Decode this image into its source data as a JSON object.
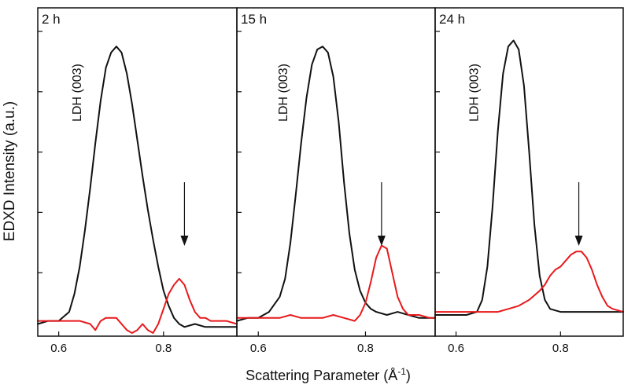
{
  "chart_data": {
    "type": "line",
    "ylabel": "EDXD Intensity (a.u.)",
    "xlabel": "Scattering Parameter (Å",
    "xlabel_superscript": "-1",
    "xlabel_suffix": ")",
    "grid": false,
    "colors": {
      "ldh": "#111111",
      "reflection": "#e8191b",
      "axis": "#111111",
      "arrow": "#111111"
    },
    "panels": [
      {
        "label": "2 h",
        "annotation": "LDH (003)",
        "xlim": [
          0.56,
          0.94
        ],
        "ylim": [
          0,
          100
        ],
        "xticks": [
          0.6,
          0.8
        ],
        "xtick_labels": [
          "0.6",
          "0.8"
        ],
        "yticks": [
          20,
          40,
          60,
          80,
          100
        ],
        "arrow_x": 0.84,
        "series": [
          {
            "key": "ldh",
            "x": [
              0.56,
              0.58,
              0.6,
              0.62,
              0.63,
              0.64,
              0.65,
              0.66,
              0.67,
              0.68,
              0.69,
              0.7,
              0.71,
              0.72,
              0.73,
              0.74,
              0.75,
              0.76,
              0.77,
              0.78,
              0.79,
              0.8,
              0.81,
              0.82,
              0.83,
              0.84,
              0.86,
              0.88,
              0.9,
              0.92,
              0.94
            ],
            "y": [
              3,
              4,
              4,
              7,
              13,
              22,
              34,
              48,
              63,
              77,
              88,
              93,
              95,
              93,
              86,
              76,
              64,
              52,
              41,
              31,
              22,
              14,
              9,
              5,
              3,
              2,
              3,
              2,
              2,
              2,
              2
            ]
          },
          {
            "key": "reflection",
            "x": [
              0.56,
              0.58,
              0.6,
              0.62,
              0.64,
              0.66,
              0.67,
              0.68,
              0.69,
              0.7,
              0.71,
              0.72,
              0.73,
              0.74,
              0.75,
              0.76,
              0.77,
              0.78,
              0.79,
              0.8,
              0.81,
              0.82,
              0.83,
              0.84,
              0.85,
              0.86,
              0.87,
              0.88,
              0.89,
              0.9,
              0.92,
              0.94
            ],
            "y": [
              4,
              4,
              4,
              4,
              4,
              3,
              1,
              4,
              5,
              5,
              5,
              3,
              1,
              0,
              1,
              3,
              1,
              0,
              3,
              8,
              13,
              16,
              18,
              16,
              11,
              7,
              5,
              5,
              4,
              4,
              4,
              3
            ]
          }
        ]
      },
      {
        "label": "15 h",
        "annotation": "LDH (003)",
        "xlim": [
          0.56,
          0.93
        ],
        "ylim": [
          0,
          100
        ],
        "xticks": [
          0.6,
          0.8
        ],
        "xtick_labels": [
          "0.6",
          "0.8"
        ],
        "yticks": [
          20,
          40,
          60,
          80,
          100
        ],
        "arrow_x": 0.83,
        "series": [
          {
            "key": "ldh",
            "x": [
              0.56,
              0.58,
              0.6,
              0.62,
              0.64,
              0.65,
              0.66,
              0.67,
              0.68,
              0.69,
              0.7,
              0.71,
              0.72,
              0.73,
              0.74,
              0.75,
              0.76,
              0.77,
              0.78,
              0.79,
              0.8,
              0.81,
              0.82,
              0.84,
              0.86,
              0.88,
              0.9,
              0.93
            ],
            "y": [
              4,
              5,
              5,
              7,
              12,
              18,
              30,
              46,
              63,
              78,
              89,
              94,
              95,
              93,
              85,
              70,
              50,
              33,
              21,
              14,
              10,
              8,
              7,
              6,
              7,
              6,
              5,
              5
            ]
          },
          {
            "key": "reflection",
            "x": [
              0.56,
              0.58,
              0.6,
              0.62,
              0.64,
              0.66,
              0.68,
              0.7,
              0.72,
              0.74,
              0.76,
              0.78,
              0.79,
              0.8,
              0.81,
              0.82,
              0.83,
              0.84,
              0.85,
              0.86,
              0.87,
              0.88,
              0.89,
              0.9,
              0.92,
              0.93
            ],
            "y": [
              5,
              5,
              5,
              5,
              5,
              6,
              5,
              5,
              5,
              6,
              5,
              4,
              6,
              10,
              17,
              25,
              29,
              28,
              20,
              12,
              8,
              6,
              6,
              6,
              5,
              5
            ]
          }
        ]
      },
      {
        "label": "24 h",
        "annotation": "LDH (003)",
        "xlim": [
          0.56,
          0.92
        ],
        "ylim": [
          0,
          100
        ],
        "xticks": [
          0.6,
          0.8
        ],
        "xtick_labels": [
          "0.6",
          "0.8"
        ],
        "yticks": [
          20,
          40,
          60,
          80,
          100
        ],
        "arrow_x": 0.835,
        "series": [
          {
            "key": "ldh",
            "x": [
              0.56,
              0.58,
              0.6,
              0.62,
              0.64,
              0.65,
              0.66,
              0.67,
              0.68,
              0.69,
              0.7,
              0.71,
              0.72,
              0.73,
              0.74,
              0.75,
              0.76,
              0.77,
              0.78,
              0.8,
              0.82,
              0.84,
              0.86,
              0.88,
              0.9,
              0.92
            ],
            "y": [
              6,
              6,
              6,
              6,
              7,
              11,
              22,
              42,
              67,
              86,
              95,
              97,
              94,
              82,
              60,
              36,
              19,
              11,
              8,
              7,
              7,
              7,
              7,
              7,
              7,
              7
            ]
          },
          {
            "key": "reflection",
            "x": [
              0.56,
              0.6,
              0.64,
              0.66,
              0.68,
              0.7,
              0.72,
              0.74,
              0.76,
              0.77,
              0.78,
              0.79,
              0.8,
              0.81,
              0.82,
              0.83,
              0.84,
              0.85,
              0.86,
              0.87,
              0.88,
              0.89,
              0.9,
              0.92
            ],
            "y": [
              7,
              7,
              7,
              7,
              7,
              8,
              9,
              11,
              14,
              16,
              19,
              21,
              22,
              24,
              26,
              27,
              27,
              25,
              21,
              16,
              12,
              9,
              8,
              7
            ]
          }
        ]
      }
    ]
  }
}
